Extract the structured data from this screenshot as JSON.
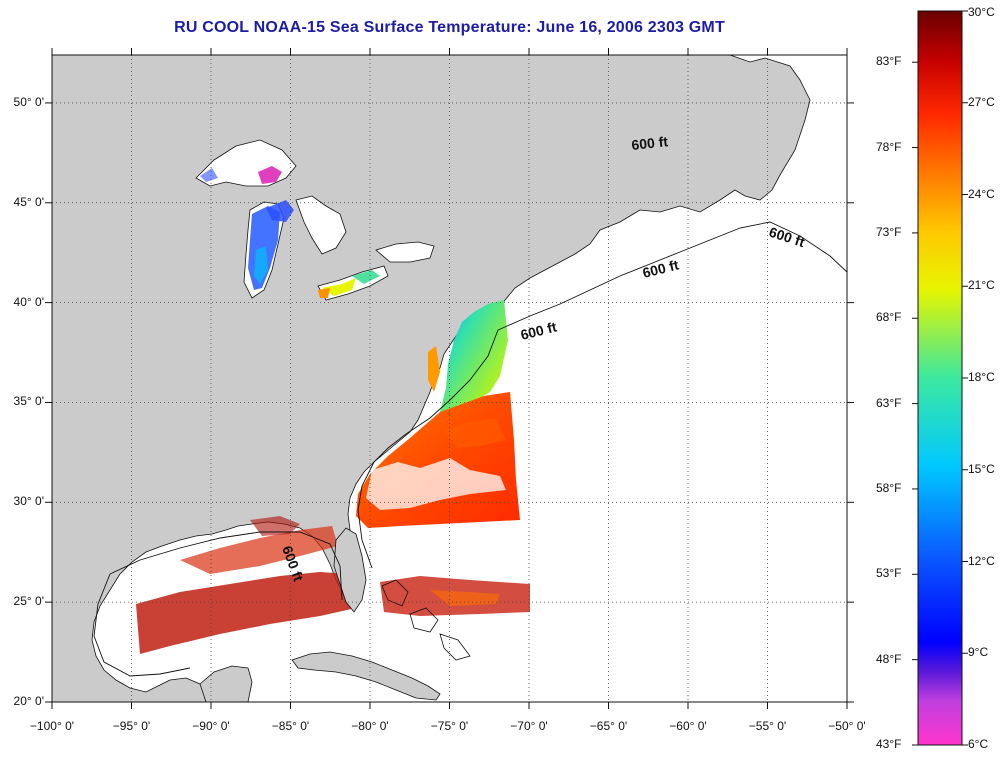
{
  "title": "RU COOL  NOAA-15  Sea Surface Temperature:  June 16, 2006 2303 GMT",
  "map": {
    "lon_range": [
      -100,
      -50
    ],
    "lat_range": [
      20,
      52.4
    ],
    "lat_ticks": [
      {
        "value": 50,
        "label": "50° 0'"
      },
      {
        "value": 45,
        "label": "45° 0'"
      },
      {
        "value": 40,
        "label": "40° 0'"
      },
      {
        "value": 35,
        "label": "35° 0'"
      },
      {
        "value": 30,
        "label": "30° 0'"
      },
      {
        "value": 25,
        "label": "25° 0'"
      },
      {
        "value": 20,
        "label": "20° 0'"
      }
    ],
    "lon_ticks": [
      {
        "value": -100,
        "label": "−100° 0'"
      },
      {
        "value": -95,
        "label": "−95° 0'"
      },
      {
        "value": -90,
        "label": "−90° 0'"
      },
      {
        "value": -85,
        "label": "−85° 0'"
      },
      {
        "value": -80,
        "label": "−80° 0'"
      },
      {
        "value": -75,
        "label": "−75° 0'"
      },
      {
        "value": -70,
        "label": "−70° 0'"
      },
      {
        "value": -65,
        "label": "−65° 0'"
      },
      {
        "value": -60,
        "label": "−60° 0'"
      },
      {
        "value": -55,
        "label": "−55° 0'"
      },
      {
        "value": -50,
        "label": "−50° 0'"
      }
    ],
    "grid": "dotted",
    "land_color": "#cbcbcb",
    "no_data_color": "#ffffff",
    "contour_label": "600 ft"
  },
  "colorbar": {
    "celsius_range": [
      6,
      30
    ],
    "fahrenheit_range": [
      43,
      86
    ],
    "celsius_labels": [
      "30°C",
      "27°C",
      "24°C",
      "21°C",
      "18°C",
      "15°C",
      "12°C",
      "9°C",
      "6°C"
    ],
    "fahrenheit_labels": [
      "83°F",
      "78°F",
      "73°F",
      "68°F",
      "63°F",
      "58°F",
      "53°F",
      "48°F",
      "43°F"
    ],
    "colors": [
      "#ff33cc",
      "#7a28d8",
      "#0000ff",
      "#0a6cff",
      "#00c8ff",
      "#18e0a0",
      "#7af04a",
      "#e6f500",
      "#ffb400",
      "#ff6e00",
      "#ff1e00",
      "#c80000",
      "#780000"
    ]
  }
}
